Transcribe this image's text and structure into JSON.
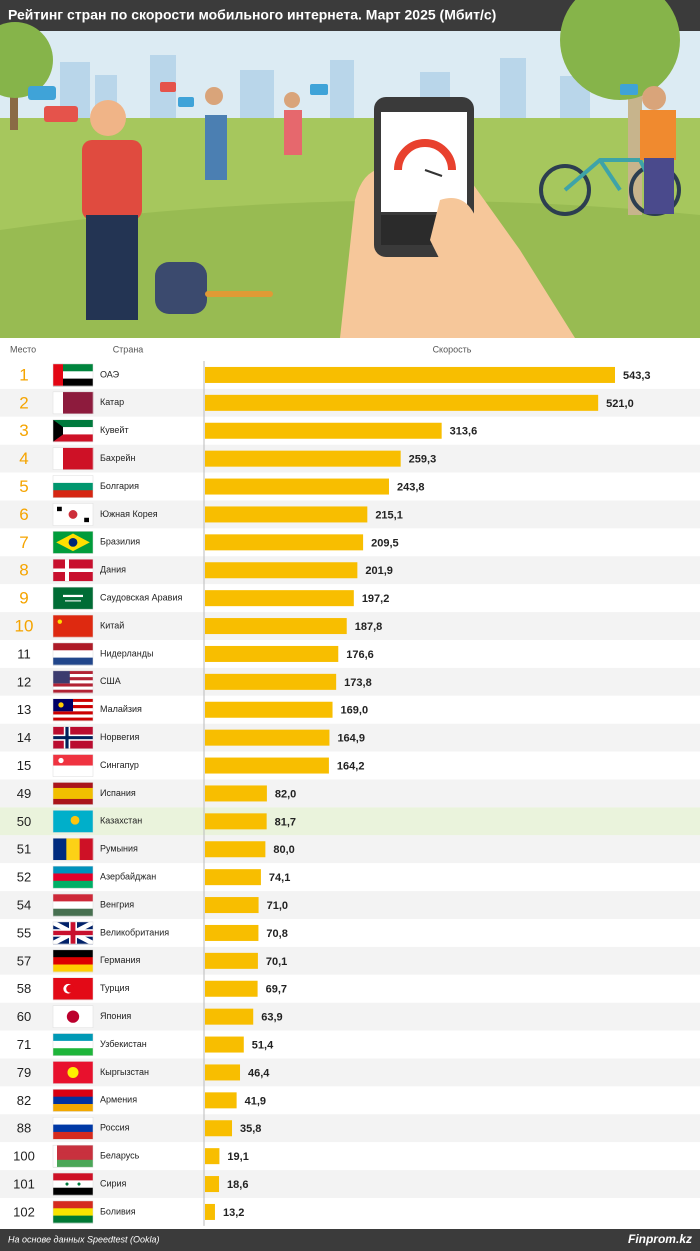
{
  "chart_data": {
    "type": "bar",
    "title": "Рейтинг стран по скорости мобильного интернета. Март 2025 (Мбит/с)",
    "columns": [
      "Место",
      "Страна",
      "Скорость"
    ],
    "ranks": [
      1,
      2,
      3,
      4,
      5,
      6,
      7,
      8,
      9,
      10,
      11,
      12,
      13,
      14,
      15,
      49,
      50,
      51,
      52,
      54,
      55,
      57,
      58,
      60,
      71,
      79,
      82,
      88,
      100,
      101,
      102
    ],
    "categories": [
      "ОАЭ",
      "Катар",
      "Кувейт",
      "Бахрейн",
      "Болгария",
      "Южная Корея",
      "Бразилия",
      "Дания",
      "Саудовская Аравия",
      "Китай",
      "Нидерланды",
      "США",
      "Малайзия",
      "Норвегия",
      "Сингапур",
      "Испания",
      "Казахстан",
      "Румыния",
      "Азербайджан",
      "Венгрия",
      "Великобритания",
      "Германия",
      "Турция",
      "Япония",
      "Узбекистан",
      "Кыргызстан",
      "Армения",
      "Россия",
      "Беларусь",
      "Сирия",
      "Боливия"
    ],
    "values": [
      543.3,
      521.0,
      313.6,
      259.3,
      243.8,
      215.1,
      209.5,
      201.9,
      197.2,
      187.8,
      176.6,
      173.8,
      169.0,
      164.9,
      164.2,
      82.0,
      81.7,
      80.0,
      74.1,
      71.0,
      70.8,
      70.1,
      69.7,
      63.9,
      51.4,
      46.4,
      41.9,
      35.8,
      19.1,
      18.6,
      13.2
    ],
    "value_labels": [
      "543,3",
      "521,0",
      "313,6",
      "259,3",
      "243,8",
      "215,1",
      "209,5",
      "201,9",
      "197,2",
      "187,8",
      "176,6",
      "173,8",
      "169,0",
      "164,9",
      "164,2",
      "82,0",
      "81,7",
      "80,0",
      "74,1",
      "71,0",
      "70,8",
      "70,1",
      "69,7",
      "63,9",
      "51,4",
      "46,4",
      "41,9",
      "35,8",
      "19,1",
      "18,6",
      "13,2"
    ],
    "color": "#f8be00",
    "rank_color": "#f5a400",
    "highlight_category": "Казахстан",
    "highlight_color": "#eaf3dc"
  },
  "footer": {
    "source": "На основе данных Speedtest (Ookla)",
    "brand": "Finprom.kz"
  }
}
